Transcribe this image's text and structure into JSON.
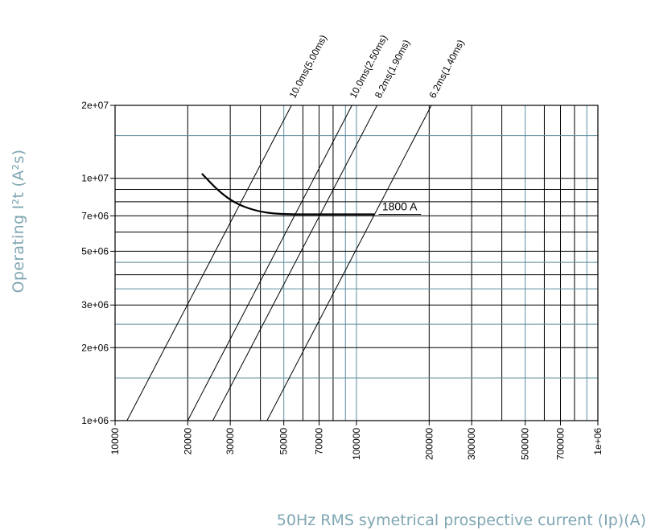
{
  "chart_data": {
    "type": "line",
    "title": "",
    "xlabel": "50Hz RMS symetrical prospective current (Ip)(A)",
    "ylabel": "Operating I²t (A²s)",
    "x_scale": "log",
    "y_scale": "log",
    "xlim": [
      10000,
      1000000
    ],
    "ylim": [
      1000000,
      20000000
    ],
    "x_ticks": [
      "10000",
      "20000",
      "30000",
      "50000",
      "70000",
      "100000",
      "200000",
      "300000",
      "500000",
      "700000",
      "1e+06"
    ],
    "y_ticks": [
      "1e+06",
      "2e+06",
      "3e+06",
      "5e+06",
      "7e+06",
      "1e+07",
      "2e+07"
    ],
    "grid": true,
    "series": [
      {
        "name": "1800 A",
        "x": [
          23000,
          27000,
          32000,
          40000,
          50000,
          70000,
          100000,
          118000
        ],
        "y": [
          10400000,
          8800000,
          7800000,
          7250000,
          7100000,
          7100000,
          7100000,
          7100000
        ]
      }
    ],
    "reference_lines": [
      {
        "name": "10.0ms(5.00ms)",
        "x": [
          11200,
          53800
        ],
        "y": [
          1000000,
          20000000
        ]
      },
      {
        "name": "10.0ms(2.50ms)",
        "x": [
          20000,
          95800
        ],
        "y": [
          1000000,
          20000000
        ]
      },
      {
        "name": "8.2ms(1.90ms)",
        "x": [
          25400,
          121700
        ],
        "y": [
          1000000,
          20000000
        ]
      },
      {
        "name": "6.2ms(1.40ms)",
        "x": [
          42600,
          204300
        ],
        "y": [
          1000000,
          20000000
        ]
      }
    ],
    "annotations": [
      "1800 A"
    ]
  }
}
